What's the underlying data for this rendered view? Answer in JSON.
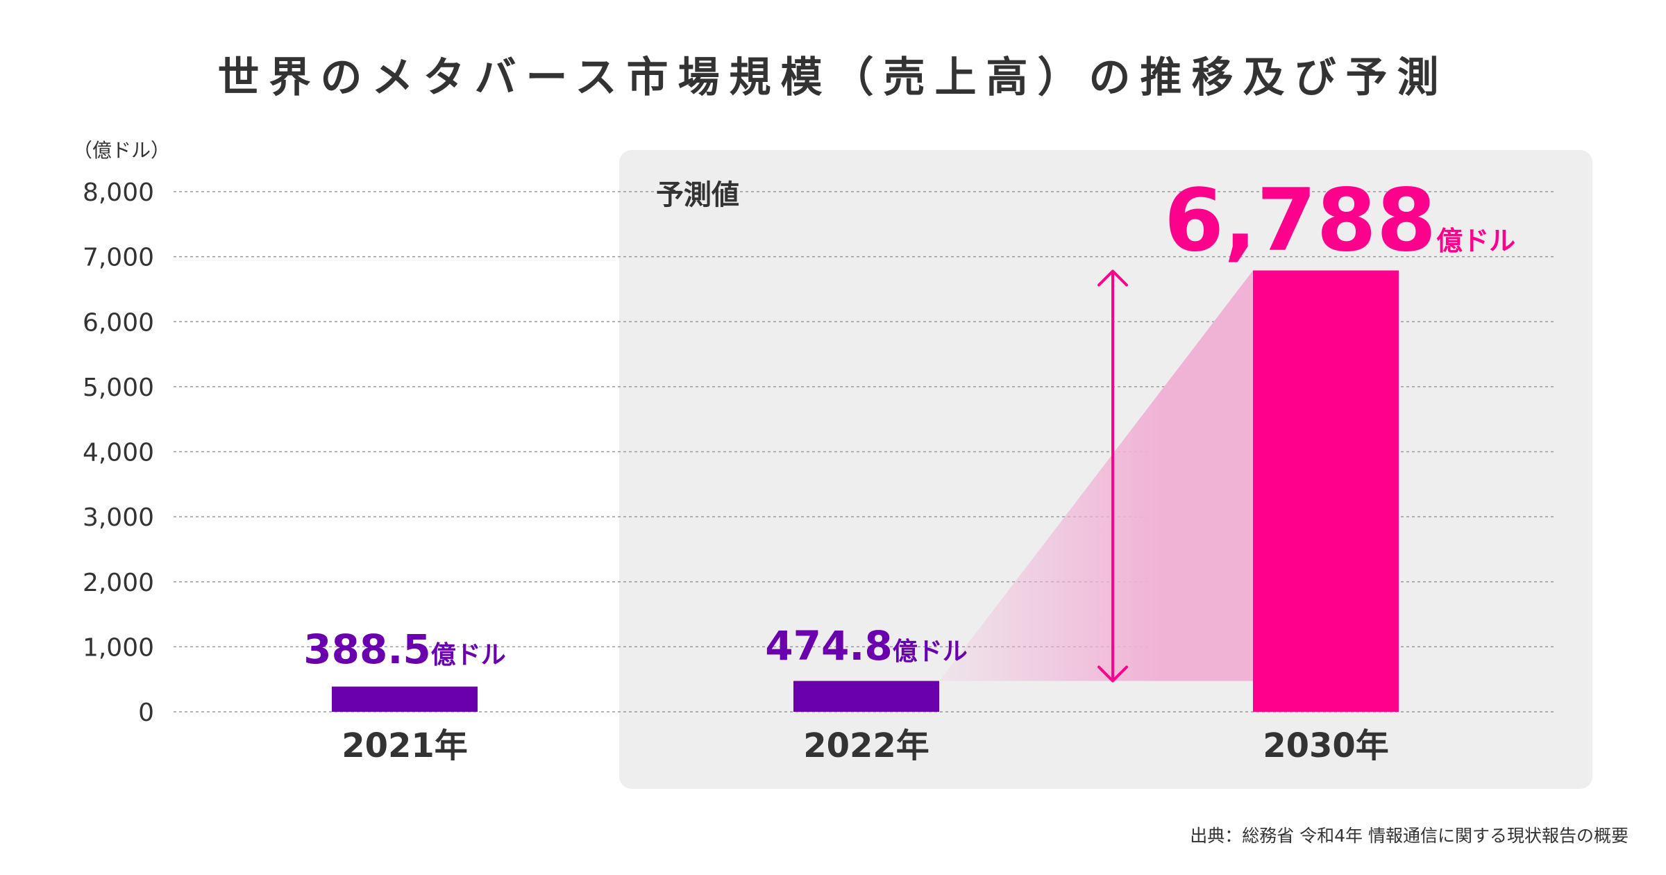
{
  "chart_data": {
    "type": "bar",
    "title": "世界のメタバース市場規模（売上高）の推移及び予測",
    "unit_label": "（億ドル）",
    "yticks": [
      "0",
      "1,000",
      "2,000",
      "3,000",
      "4,000",
      "5,000",
      "6,000",
      "7,000",
      "8,000"
    ],
    "ylim": [
      0,
      8000
    ],
    "grid": true,
    "categories": [
      "2021年",
      "2022年",
      "2030年"
    ],
    "values": [
      388.5,
      474.8,
      6788
    ],
    "data_labels": [
      {
        "number": "388.5",
        "unit": "億ドル"
      },
      {
        "number": "474.8",
        "unit": "億ドル"
      },
      {
        "number": "6,788",
        "unit": "億ドル"
      }
    ],
    "forecast_label": "予測値",
    "source": "出典：総務省 令和4年 情報通信に関する現状報告の概要"
  },
  "colors": {
    "actual": "#6a00ad",
    "forecast": "#ff008c",
    "forecast_panel": "#eeeeee",
    "grid": "#999999",
    "text": "#333333"
  }
}
